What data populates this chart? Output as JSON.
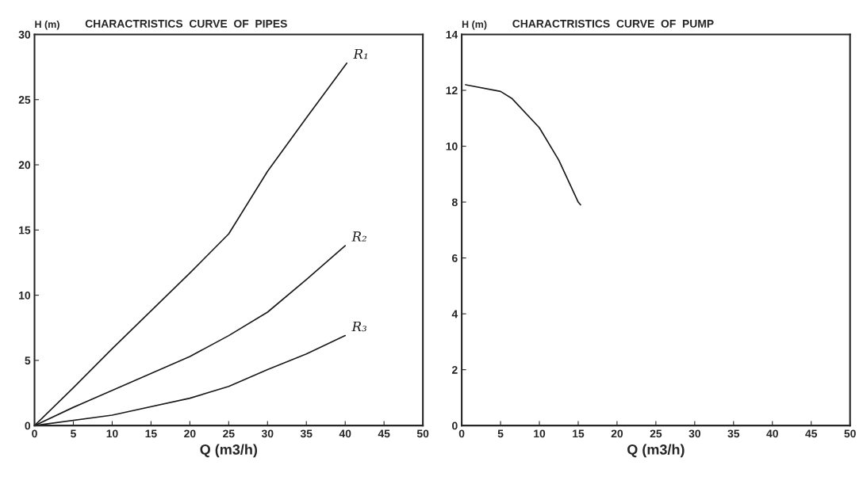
{
  "chart_data": [
    {
      "type": "line",
      "title": "CHARACTRISTICS  CURVE  OF  PIPES",
      "ylabel": "H (m)",
      "xlabel": "Q (m3/h)",
      "xlim": [
        0,
        50
      ],
      "xticks": [
        0,
        5,
        10,
        15,
        20,
        25,
        30,
        35,
        40,
        45,
        50
      ],
      "ylim": [
        0,
        30
      ],
      "yticks": [
        0,
        5,
        10,
        15,
        20,
        25,
        30
      ],
      "grid": false,
      "legend": false,
      "marker": "none",
      "line_style": "solid",
      "series": [
        {
          "name": "R₁",
          "color": "#1a1a1a",
          "x": [
            0,
            5,
            10,
            20,
            25,
            30,
            35,
            40.2
          ],
          "values": [
            0,
            2.9,
            5.9,
            11.7,
            14.7,
            19.5,
            23.6,
            27.8
          ]
        },
        {
          "name": "R₂",
          "color": "#1a1a1a",
          "x": [
            0,
            5,
            10,
            20,
            25,
            30,
            35,
            40
          ],
          "values": [
            0,
            1.4,
            2.7,
            5.3,
            6.9,
            8.7,
            11.2,
            13.8
          ]
        },
        {
          "name": "R₃",
          "color": "#1a1a1a",
          "x": [
            0,
            10,
            20,
            25,
            30,
            35,
            40
          ],
          "values": [
            0,
            0.8,
            2.1,
            3.0,
            4.3,
            5.5,
            6.9
          ]
        }
      ]
    },
    {
      "type": "line",
      "title": "CHARACTRISTICS  CURVE  OF  PUMP",
      "ylabel": "H (m)",
      "xlabel": "Q (m3/h)",
      "xlim": [
        0,
        50
      ],
      "xticks": [
        0,
        5,
        10,
        15,
        20,
        25,
        30,
        35,
        40,
        45,
        50
      ],
      "ylim": [
        0,
        14
      ],
      "yticks": [
        0,
        2,
        4,
        6,
        8,
        10,
        12,
        14
      ],
      "grid": false,
      "legend": false,
      "marker": "none",
      "line_style": "solid",
      "series": [
        {
          "color": "#1a1a1a",
          "x": [
            0.5,
            5,
            6.5,
            10,
            12.5,
            15,
            15.3
          ],
          "values": [
            12.2,
            11.96,
            11.7,
            10.66,
            9.5,
            8.0,
            7.9
          ]
        }
      ]
    }
  ]
}
